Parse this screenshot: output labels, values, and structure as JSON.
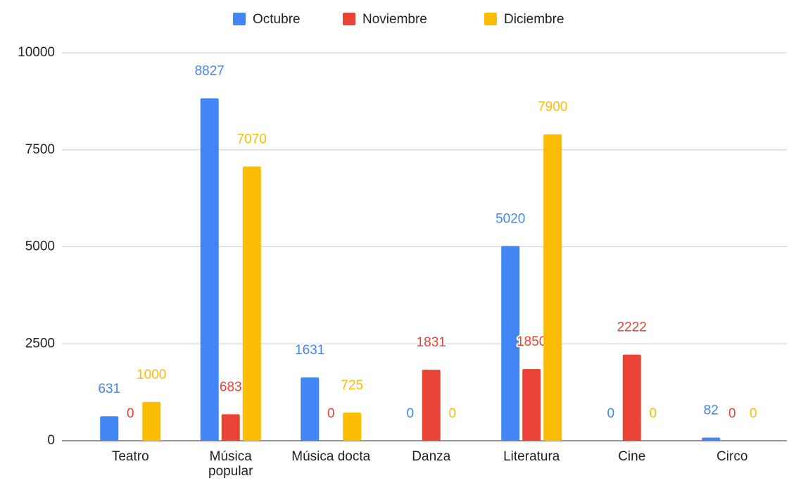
{
  "chart_data": {
    "type": "bar",
    "categories": [
      "Teatro",
      "Música popular",
      "Música docta",
      "Danza",
      "Literatura",
      "Cine",
      "Circo"
    ],
    "series": [
      {
        "name": "Octubre",
        "color": "#4285f4",
        "values": [
          631,
          8827,
          1631,
          0,
          5020,
          0,
          82
        ]
      },
      {
        "name": "Noviembre",
        "color": "#ea4335",
        "values": [
          0,
          683,
          0,
          1831,
          1850,
          2222,
          0
        ]
      },
      {
        "name": "Diciembre",
        "color": "#fbbc04",
        "values": [
          1000,
          7070,
          725,
          0,
          7900,
          0,
          0
        ]
      }
    ],
    "ylim": [
      0,
      10000
    ],
    "yticks": [
      0,
      2500,
      5000,
      7500,
      10000
    ],
    "grid": true,
    "legend": "top"
  }
}
